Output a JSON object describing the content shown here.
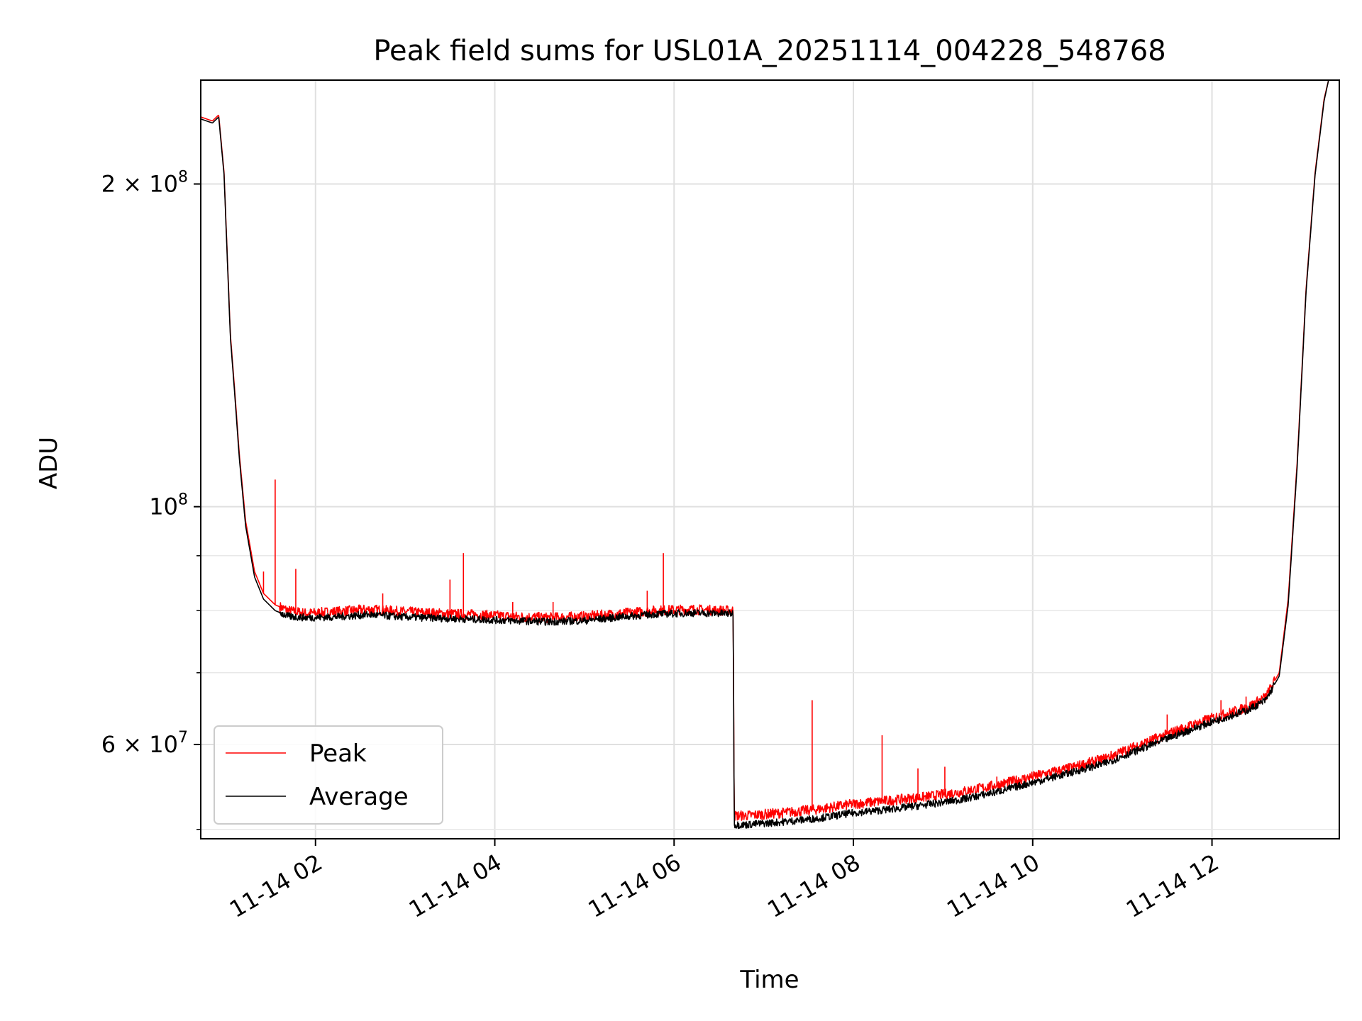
{
  "chart_data": {
    "type": "line",
    "title": "Peak field sums for USL01A_20251114_004228_548768",
    "xlabel": "Time",
    "ylabel": "ADU",
    "yscale": "log",
    "ylim": [
      49000000,
      250000000
    ],
    "xlim": [
      0.72,
      13.42
    ],
    "grid": true,
    "legend_location": "lower-left",
    "x_ticks": [
      {
        "value": 2,
        "label": "11-14 02"
      },
      {
        "value": 4,
        "label": "11-14 04"
      },
      {
        "value": 6,
        "label": "11-14 06"
      },
      {
        "value": 8,
        "label": "11-14 08"
      },
      {
        "value": 10,
        "label": "11-14 10"
      },
      {
        "value": 12,
        "label": "11-14 12"
      }
    ],
    "y_ticks": [
      {
        "value": 60000000,
        "base": "6 × 10",
        "exp": "7"
      },
      {
        "value": 100000000,
        "base": "10",
        "exp": "8"
      },
      {
        "value": 200000000,
        "base": "2 × 10",
        "exp": "8"
      }
    ],
    "y_minor_ticks": [
      50000000,
      70000000,
      80000000,
      90000000
    ],
    "series": [
      {
        "name": "Peak",
        "color": "#ff0000",
        "x": [
          0.72,
          0.85,
          0.92,
          0.98,
          1.05,
          1.1,
          1.15,
          1.22,
          1.32,
          1.42,
          1.55,
          1.7,
          1.9,
          2.2,
          2.6,
          3.0,
          3.4,
          3.8,
          4.2,
          4.6,
          5.0,
          5.4,
          5.8,
          6.2,
          6.55,
          6.66,
          6.67,
          6.8,
          7.2,
          7.6,
          8.0,
          8.4,
          8.8,
          9.2,
          9.6,
          10.0,
          10.4,
          10.8,
          11.2,
          11.6,
          12.0,
          12.4,
          12.6,
          12.75,
          12.85,
          12.95,
          13.05,
          13.15,
          13.25,
          13.3,
          13.42
        ],
        "y": [
          231000000,
          229000000,
          232000000,
          205000000,
          145000000,
          128000000,
          112000000,
          97000000,
          87000000,
          83000000,
          81000000,
          80000000,
          79500000,
          79800000,
          80200000,
          79800000,
          79500000,
          79300000,
          79000000,
          78800000,
          79000000,
          79500000,
          80000000,
          80200000,
          80000000,
          80000000,
          51500000,
          51500000,
          51800000,
          52200000,
          52800000,
          53200000,
          53600000,
          54200000,
          55000000,
          56000000,
          57000000,
          58200000,
          60000000,
          61800000,
          63500000,
          65000000,
          66500000,
          70000000,
          82000000,
          110000000,
          160000000,
          205000000,
          240000000,
          250000000,
          250000000
        ]
      },
      {
        "name": "Average",
        "color": "#000000",
        "x": [
          0.72,
          0.85,
          0.92,
          0.98,
          1.05,
          1.1,
          1.15,
          1.22,
          1.32,
          1.42,
          1.55,
          1.7,
          1.9,
          2.2,
          2.6,
          3.0,
          3.4,
          3.8,
          4.2,
          4.6,
          5.0,
          5.4,
          5.8,
          6.2,
          6.55,
          6.66,
          6.67,
          6.8,
          7.2,
          7.6,
          8.0,
          8.4,
          8.8,
          9.2,
          9.6,
          10.0,
          10.4,
          10.8,
          11.2,
          11.6,
          12.0,
          12.4,
          12.6,
          12.75,
          12.85,
          12.95,
          13.05,
          13.15,
          13.25,
          13.3,
          13.42
        ],
        "y": [
          230000000,
          228000000,
          231000000,
          204000000,
          144000000,
          127000000,
          111000000,
          96000000,
          86000000,
          82000000,
          80000000,
          79000000,
          78800000,
          78900000,
          79300000,
          78900000,
          78700000,
          78500000,
          78300000,
          78100000,
          78300000,
          78900000,
          79400000,
          79600000,
          79500000,
          79500000,
          50500000,
          50500000,
          50800000,
          51200000,
          51800000,
          52200000,
          52700000,
          53300000,
          54200000,
          55300000,
          56400000,
          57600000,
          59400000,
          61200000,
          63000000,
          64600000,
          66000000,
          69500000,
          81000000,
          109000000,
          159000000,
          204000000,
          239000000,
          250000000,
          250000000
        ]
      }
    ],
    "spikes": [
      {
        "x": 1.27,
        "y": 91000000
      },
      {
        "x": 1.42,
        "y": 87000000
      },
      {
        "x": 1.55,
        "y": 106000000
      },
      {
        "x": 1.78,
        "y": 87500000
      },
      {
        "x": 2.75,
        "y": 83000000
      },
      {
        "x": 3.5,
        "y": 85500000
      },
      {
        "x": 3.65,
        "y": 90500000
      },
      {
        "x": 4.2,
        "y": 81500000
      },
      {
        "x": 4.65,
        "y": 81500000
      },
      {
        "x": 5.7,
        "y": 83500000
      },
      {
        "x": 5.88,
        "y": 90500000
      },
      {
        "x": 7.54,
        "y": 66000000
      },
      {
        "x": 8.32,
        "y": 61200000
      },
      {
        "x": 8.72,
        "y": 57000000
      },
      {
        "x": 9.02,
        "y": 57200000
      },
      {
        "x": 9.6,
        "y": 56000000
      },
      {
        "x": 11.5,
        "y": 64000000
      },
      {
        "x": 12.1,
        "y": 66000000
      },
      {
        "x": 12.38,
        "y": 66500000
      }
    ]
  }
}
